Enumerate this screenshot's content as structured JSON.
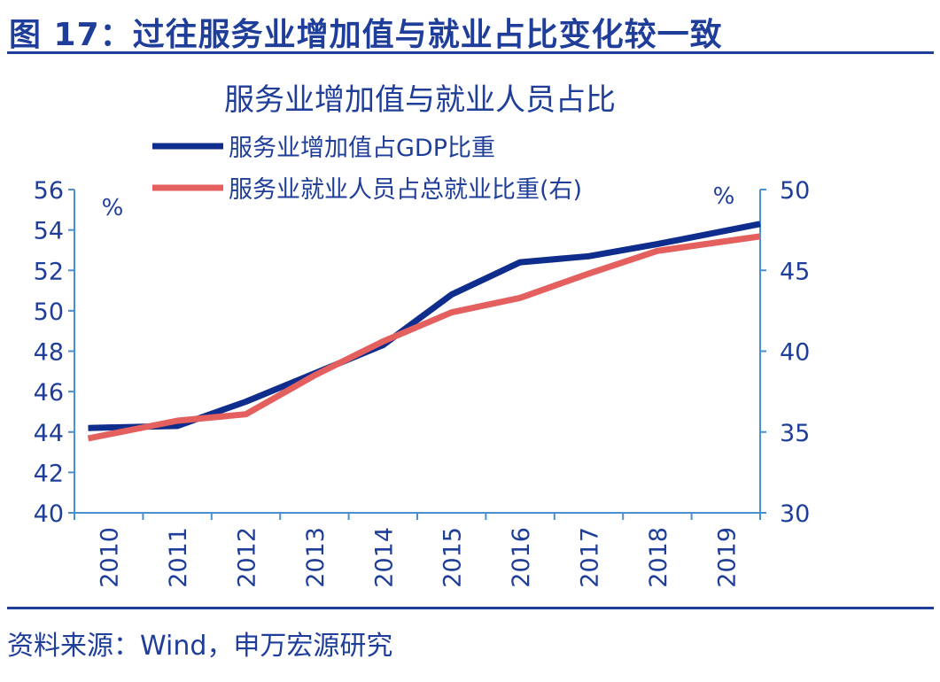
{
  "figure": {
    "title": "图 17：过往服务业增加值与就业占比变化较一致",
    "source": "资料来源：Wind，申万宏源研究"
  },
  "colors": {
    "brand": "#1f3e99",
    "axis": "#4a8fd0",
    "series_gdp": "#0f2d8c",
    "series_emp": "#e3605f",
    "text": "#1f3e99",
    "chart_title": "#1f3e99"
  },
  "chart_data": {
    "type": "line",
    "title": "服务业增加值与就业人员占比",
    "x": [
      "2010",
      "2011",
      "2012",
      "2013",
      "2014",
      "2015",
      "2016",
      "2017",
      "2018",
      "2019"
    ],
    "series": [
      {
        "name": "服务业增加值占GDP比重",
        "axis": "left",
        "values": [
          44.2,
          44.3,
          45.5,
          46.9,
          48.3,
          50.8,
          52.4,
          52.7,
          53.3,
          54.3
        ]
      },
      {
        "name": "服务业就业人员占总就业比重(右)",
        "axis": "right",
        "values": [
          34.6,
          35.7,
          36.1,
          38.5,
          40.6,
          42.4,
          43.3,
          44.8,
          46.2,
          47.1
        ]
      }
    ],
    "y_left": {
      "unit": "%",
      "min": 40,
      "max": 56,
      "ticks": [
        "40",
        "42",
        "44",
        "46",
        "48",
        "50",
        "52",
        "54",
        "56"
      ]
    },
    "y_right": {
      "unit": "%",
      "min": 30,
      "max": 50,
      "ticks": [
        "30",
        "35",
        "40",
        "45",
        "50"
      ]
    },
    "grid": false,
    "legend_position": "top-center",
    "xlabel": "",
    "ylabel": ""
  }
}
